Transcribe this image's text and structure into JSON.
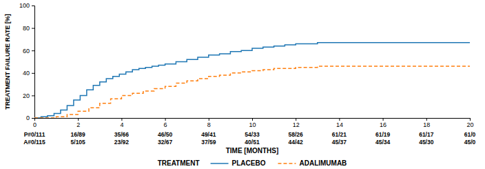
{
  "chart_data": {
    "type": "step",
    "xlabel": "TIME [MONTHS]",
    "ylabel": "TREATMENT FAILURE RATE [%]",
    "xlim": [
      0,
      20
    ],
    "ylim": [
      0,
      100
    ],
    "xticks": [
      0,
      2,
      4,
      6,
      8,
      10,
      12,
      14,
      16,
      18,
      20
    ],
    "yticks": [
      0,
      20,
      40,
      60,
      80,
      100
    ],
    "grid": false,
    "legend": "bottom",
    "legend_title": "TREATMENT",
    "series": [
      {
        "name": "PLACEBO",
        "line_style": "solid",
        "x": [
          0,
          0.3,
          0.6,
          0.9,
          1.2,
          1.5,
          1.8,
          2.1,
          2.4,
          2.7,
          3.0,
          3.3,
          3.6,
          3.9,
          4.2,
          4.5,
          4.8,
          5.1,
          5.4,
          5.7,
          6.0,
          6.5,
          7.0,
          7.5,
          8.0,
          8.5,
          9.0,
          9.5,
          10.0,
          10.5,
          11.0,
          11.5,
          12.0,
          13.0,
          14.0,
          20.0
        ],
        "values": [
          0,
          1,
          2,
          4,
          7,
          11,
          16,
          20,
          25,
          29,
          32,
          35,
          37,
          39,
          41,
          43,
          44,
          45,
          46,
          47,
          48,
          50,
          52,
          54,
          56,
          57,
          59,
          60,
          62,
          63,
          64,
          65,
          66,
          67,
          67,
          67
        ]
      },
      {
        "name": "ADALIMUMAB",
        "line_style": "dashed",
        "x": [
          0,
          0.5,
          1.0,
          1.5,
          2.0,
          2.5,
          3.0,
          3.5,
          4.0,
          4.5,
          5.0,
          5.5,
          6.0,
          6.5,
          7.0,
          7.5,
          8.0,
          8.5,
          9.0,
          9.5,
          10.0,
          10.5,
          11.0,
          11.5,
          12.0,
          13.0,
          14.0,
          20.0
        ],
        "values": [
          0,
          0,
          1,
          3,
          6,
          9,
          13,
          17,
          20,
          22,
          24,
          26,
          28,
          31,
          33,
          35,
          37,
          38,
          40,
          41,
          42,
          43,
          44,
          44,
          45,
          46,
          46,
          46
        ]
      }
    ],
    "table_rows": [
      [
        "P#0/111",
        "16/89",
        "35/66",
        "46/50",
        "49/41",
        "54/33",
        "58/26",
        "61/21",
        "61/19",
        "61/17",
        "61/0"
      ],
      [
        "A#0/115",
        "5/105",
        "23/92",
        "32/67",
        "37/59",
        "40/51",
        "44/42",
        "45/37",
        "45/34",
        "45/30",
        "45/0"
      ]
    ]
  }
}
